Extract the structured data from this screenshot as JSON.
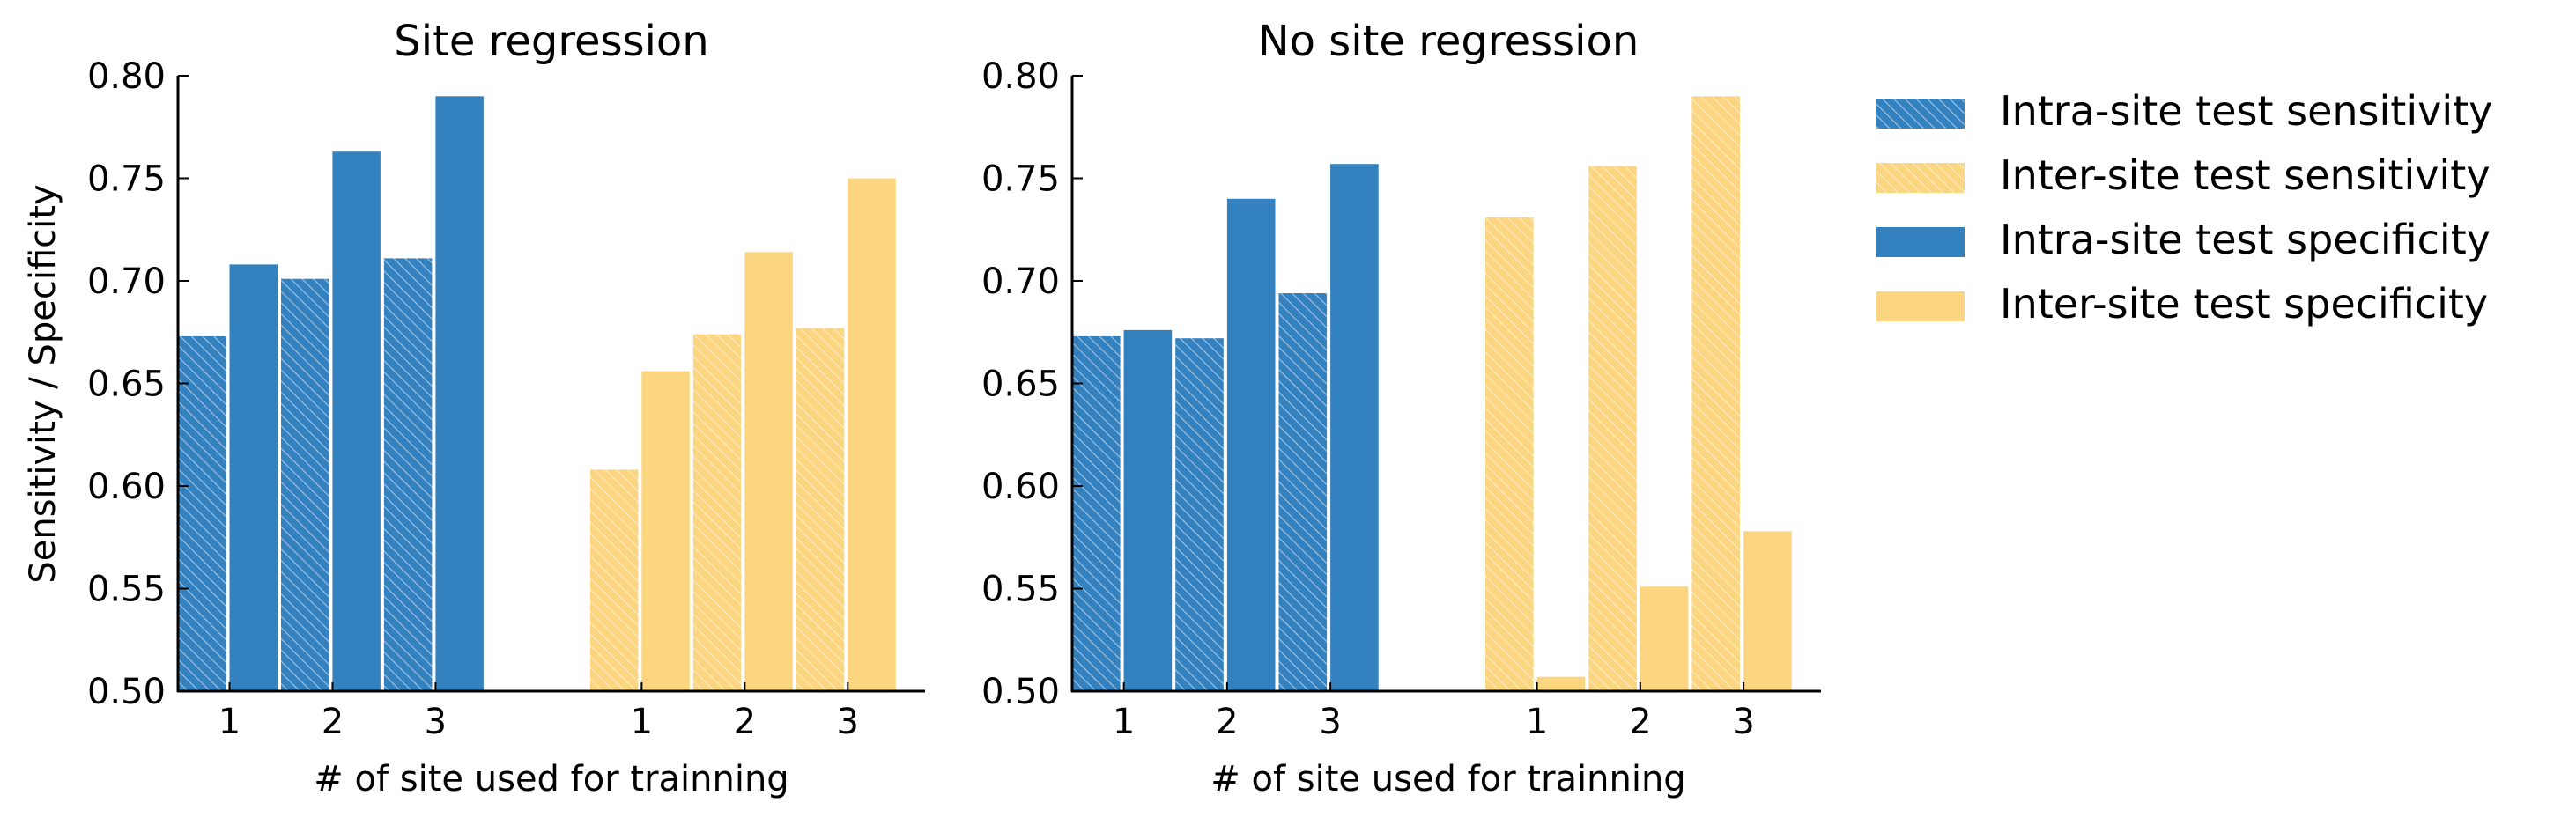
{
  "chart_data": [
    {
      "type": "bar",
      "title": "Site regression",
      "xlabel": "# of site used for trainning",
      "ylabel": "Sensitivity / Specificity",
      "ylim": [
        0.5,
        0.8
      ],
      "yticks": [
        "0.50",
        "0.55",
        "0.60",
        "0.65",
        "0.70",
        "0.75",
        "0.80"
      ],
      "groups": [
        {
          "name": "Intra-site test",
          "categories": [
            "1",
            "2",
            "3"
          ],
          "series": [
            {
              "name": "Intra-site test sensitivity",
              "values": [
                0.673,
                0.701,
                0.711
              ]
            },
            {
              "name": "Intra-site test specificity",
              "values": [
                0.708,
                0.763,
                0.79
              ]
            }
          ]
        },
        {
          "name": "Inter-site test",
          "categories": [
            "1",
            "2",
            "3"
          ],
          "series": [
            {
              "name": "Inter-site test sensitivity",
              "values": [
                0.608,
                0.674,
                0.677
              ]
            },
            {
              "name": "Inter-site test specificity",
              "values": [
                0.656,
                0.714,
                0.75
              ]
            }
          ]
        }
      ]
    },
    {
      "type": "bar",
      "title": "No site regression",
      "xlabel": "# of site used for trainning",
      "ylabel": "",
      "ylim": [
        0.5,
        0.8
      ],
      "yticks": [
        "0.50",
        "0.55",
        "0.60",
        "0.65",
        "0.70",
        "0.75",
        "0.80"
      ],
      "groups": [
        {
          "name": "Intra-site test",
          "categories": [
            "1",
            "2",
            "3"
          ],
          "series": [
            {
              "name": "Intra-site test sensitivity",
              "values": [
                0.673,
                0.672,
                0.694
              ]
            },
            {
              "name": "Intra-site test specificity",
              "values": [
                0.676,
                0.74,
                0.757
              ]
            }
          ]
        },
        {
          "name": "Inter-site test",
          "categories": [
            "1",
            "2",
            "3"
          ],
          "series": [
            {
              "name": "Inter-site test sensitivity",
              "values": [
                0.731,
                0.756,
                0.79
              ]
            },
            {
              "name": "Inter-site test specificity",
              "values": [
                0.507,
                0.551,
                0.578
              ]
            }
          ]
        }
      ]
    }
  ],
  "legend": {
    "position": "right",
    "items": [
      {
        "label": "Intra-site test sensitivity",
        "color": "#3481c0",
        "hatched": true
      },
      {
        "label": "Inter-site test sensitivity",
        "color": "#fbd580",
        "hatched": true
      },
      {
        "label": "Intra-site test specificity",
        "color": "#3481c0",
        "hatched": false
      },
      {
        "label": "Inter-site test specificity",
        "color": "#fbd580",
        "hatched": false
      }
    ]
  },
  "colors": {
    "intra": "#3481c0",
    "inter": "#fbd580",
    "hatch_intra": "#ffffff",
    "hatch_inter": "#ffffff"
  }
}
